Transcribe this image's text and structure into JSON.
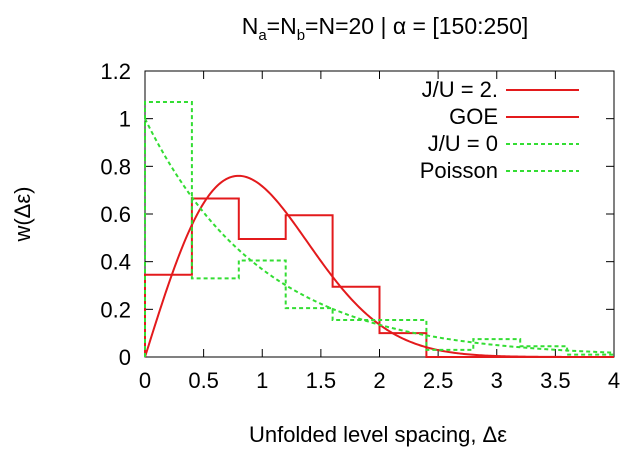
{
  "chart_data": {
    "type": "line",
    "title": {
      "prefix": "N",
      "sub_a": "a",
      "eq1": "=N",
      "sub_b": "b",
      "rest": "=N=20 | α = [150:250]"
    },
    "xlabel": "Unfolded level spacing, Δε",
    "ylabel": "w(Δε)",
    "xlim": [
      0,
      4
    ],
    "ylim": [
      0,
      1.2
    ],
    "xticks": [
      "0",
      "0.5",
      "1",
      "1.5",
      "2",
      "2.5",
      "3",
      "3.5",
      "4"
    ],
    "yticks": [
      "0",
      "0.2",
      "0.4",
      "0.6",
      "0.8",
      "1",
      "1.2"
    ],
    "grid": false,
    "legend_position": "top-right",
    "series": [
      {
        "name": "J/U = 2.",
        "kind": "histogram",
        "color": "#e31a1c",
        "dash": "solid",
        "bin_edges": [
          0,
          0.4,
          0.8,
          1.2,
          1.6,
          2.0,
          2.4,
          2.8,
          3.2,
          3.6,
          4.0
        ],
        "values": [
          0.345,
          0.665,
          0.495,
          0.595,
          0.295,
          0.1,
          0.0,
          0.0,
          0.0,
          0.0
        ]
      },
      {
        "name": "GOE",
        "kind": "function",
        "function": "goe",
        "color": "#e31a1c",
        "dash": "solid"
      },
      {
        "name": "J/U = 0",
        "kind": "histogram",
        "color": "#33dd33",
        "dash": "dashed",
        "bin_edges": [
          0,
          0.4,
          0.8,
          1.2,
          1.6,
          2.0,
          2.4,
          2.8,
          3.2,
          3.6,
          4.0
        ],
        "values": [
          1.07,
          0.33,
          0.405,
          0.205,
          0.155,
          0.155,
          0.03,
          0.075,
          0.045,
          0.01
        ]
      },
      {
        "name": "Poisson",
        "kind": "function",
        "function": "poisson",
        "color": "#33dd33",
        "dash": "dashed"
      }
    ]
  }
}
